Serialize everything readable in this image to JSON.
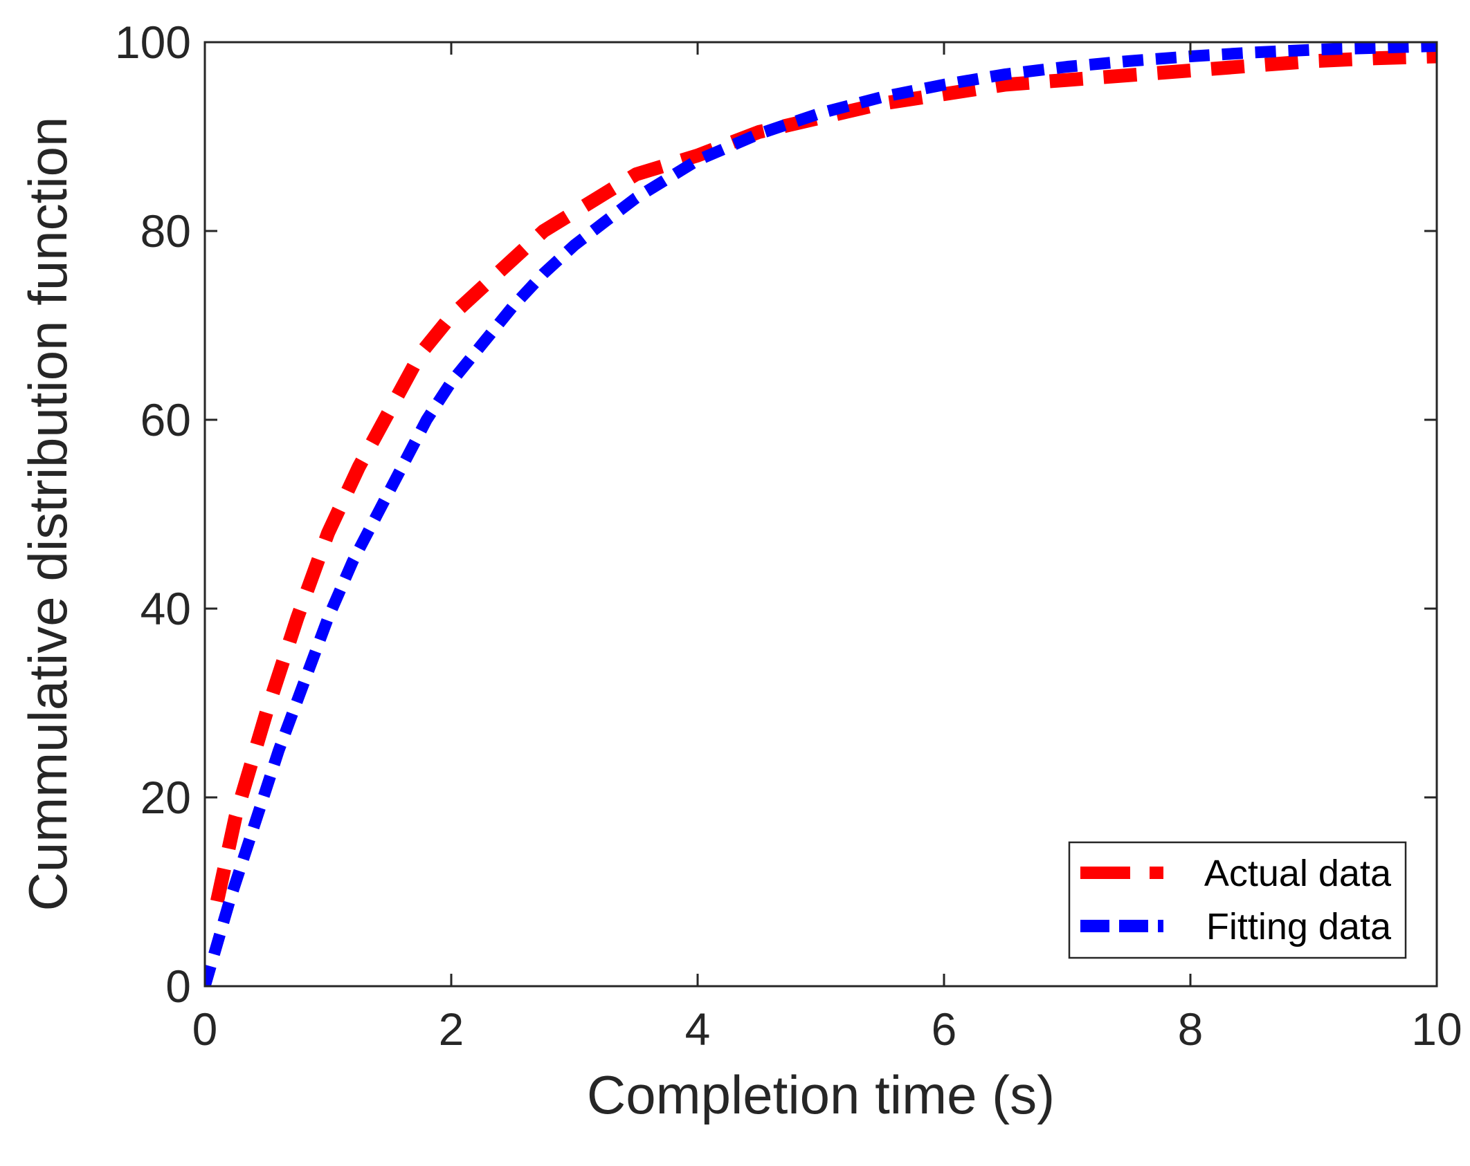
{
  "chart_data": {
    "type": "line",
    "title": "",
    "xlabel": "Completion time (s)",
    "ylabel": "Cummulative distribution function",
    "xlim": [
      0,
      10
    ],
    "ylim": [
      0,
      100
    ],
    "xticks": [
      0,
      2,
      4,
      6,
      8,
      10
    ],
    "xtick_labels": [
      "0",
      "2",
      "4",
      "6",
      "8",
      "10"
    ],
    "yticks": [
      0,
      20,
      40,
      60,
      80,
      100
    ],
    "ytick_labels": [
      "0",
      "20",
      "40",
      "60",
      "80",
      "100"
    ],
    "grid": false,
    "legend_position": "bottom-right",
    "series": [
      {
        "name": "Actual data",
        "color": "#ff0000",
        "style": "dashed",
        "x": [
          0.1,
          0.25,
          0.5,
          0.75,
          1.0,
          1.25,
          1.5,
          1.75,
          2.0,
          2.25,
          2.5,
          2.75,
          3.0,
          3.25,
          3.5,
          4.0,
          4.5,
          5.0,
          5.5,
          6.0,
          6.5,
          7.0,
          7.5,
          8.0,
          8.5,
          9.0,
          9.5,
          10.0
        ],
        "values": [
          9,
          18,
          29,
          39,
          48,
          55,
          61,
          67,
          71,
          74,
          77,
          80,
          82,
          84,
          86,
          88,
          90.5,
          92,
          93.5,
          94.5,
          95.5,
          96,
          96.5,
          97,
          97.5,
          98,
          98.3,
          98.5
        ]
      },
      {
        "name": "Fitting data",
        "color": "#0000ff",
        "style": "dashed",
        "x": [
          0,
          0.2,
          0.4,
          0.6,
          0.8,
          1.0,
          1.2,
          1.4,
          1.6,
          1.8,
          2.0,
          2.25,
          2.5,
          2.75,
          3.0,
          3.25,
          3.5,
          3.75,
          4.0,
          4.5,
          5.0,
          5.5,
          6.0,
          6.5,
          7.0,
          7.5,
          8.0,
          8.5,
          9.0,
          9.5,
          10.0
        ],
        "values": [
          0,
          9,
          17,
          25,
          32,
          39,
          45,
          50,
          55,
          60,
          64,
          68,
          72,
          75.5,
          78.5,
          81,
          83.5,
          85.5,
          87.5,
          90.3,
          92.5,
          94.2,
          95.5,
          96.6,
          97.4,
          98,
          98.5,
          98.9,
          99.2,
          99.4,
          99.6
        ]
      }
    ]
  }
}
